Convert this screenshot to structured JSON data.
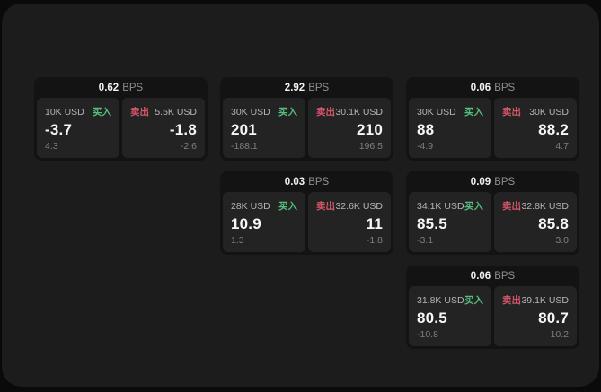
{
  "labels": {
    "buy": "买入",
    "sell": "卖出",
    "bps_suffix": "BPS"
  },
  "colors": {
    "outer_bg": "#0a0a0a",
    "window_bg": "#1c1c1c",
    "card_bg": "#131313",
    "panel_bg": "#232323",
    "buy_green": "#57bd7d",
    "sell_red": "#d4566a"
  },
  "cards": [
    {
      "bps": "0.62",
      "buy": {
        "amount": "10K USD",
        "value": "-3.7",
        "sub": "4.3"
      },
      "sell": {
        "amount": "5.5K USD",
        "value": "-1.8",
        "sub": "-2.6"
      }
    },
    {
      "bps": "2.92",
      "buy": {
        "amount": "30K USD",
        "value": "201",
        "sub": "-188.1"
      },
      "sell": {
        "amount": "30.1K USD",
        "value": "210",
        "sub": "196.5"
      }
    },
    {
      "bps": "0.06",
      "buy": {
        "amount": "30K USD",
        "value": "88",
        "sub": "-4.9"
      },
      "sell": {
        "amount": "30K USD",
        "value": "88.2",
        "sub": "4.7"
      }
    },
    {
      "bps": "0.03",
      "buy": {
        "amount": "28K USD",
        "value": "10.9",
        "sub": "1.3"
      },
      "sell": {
        "amount": "32.6K USD",
        "value": "11",
        "sub": "-1.8"
      }
    },
    {
      "bps": "0.09",
      "buy": {
        "amount": "34.1K USD",
        "value": "85.5",
        "sub": "-3.1"
      },
      "sell": {
        "amount": "32.8K USD",
        "value": "85.8",
        "sub": "3.0"
      }
    },
    {
      "bps": "0.06",
      "buy": {
        "amount": "31.8K USD",
        "value": "80.5",
        "sub": "-10.8"
      },
      "sell": {
        "amount": "39.1K USD",
        "value": "80.7",
        "sub": "10.2"
      }
    }
  ]
}
